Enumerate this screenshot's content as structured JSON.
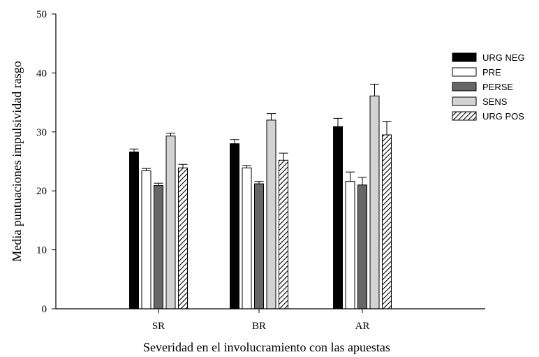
{
  "chart_data": {
    "type": "bar",
    "title": "",
    "xlabel": "Severidad en el involucramiento con las apuestas",
    "ylabel": "Media puntuaciones impulsividad rasgo",
    "ylim": [
      0,
      50
    ],
    "yticks": [
      "0",
      "10",
      "20",
      "30",
      "40",
      "50"
    ],
    "categories": [
      "SR",
      "BR",
      "AR"
    ],
    "legend_position": "right",
    "grid": false,
    "series": [
      {
        "name": "URG NEG",
        "fill": "#000000",
        "pattern": "solid",
        "values": [
          26.6,
          28.0,
          30.9
        ],
        "errors": [
          0.5,
          0.7,
          1.4
        ]
      },
      {
        "name": "PRE",
        "fill": "#ffffff",
        "pattern": "solid",
        "values": [
          23.4,
          23.9,
          21.6
        ],
        "errors": [
          0.4,
          0.4,
          1.6
        ]
      },
      {
        "name": "PERSE",
        "fill": "#666666",
        "pattern": "solid",
        "values": [
          20.9,
          21.2,
          21.0
        ],
        "errors": [
          0.4,
          0.4,
          1.3
        ]
      },
      {
        "name": "SENS",
        "fill": "#d3d3d3",
        "pattern": "solid",
        "values": [
          29.3,
          32.0,
          36.1
        ],
        "errors": [
          0.5,
          1.1,
          2.0
        ]
      },
      {
        "name": "URG POS",
        "fill": "#ffffff",
        "pattern": "hatch",
        "values": [
          23.9,
          25.2,
          29.5
        ],
        "errors": [
          0.6,
          1.2,
          2.3
        ]
      }
    ]
  }
}
